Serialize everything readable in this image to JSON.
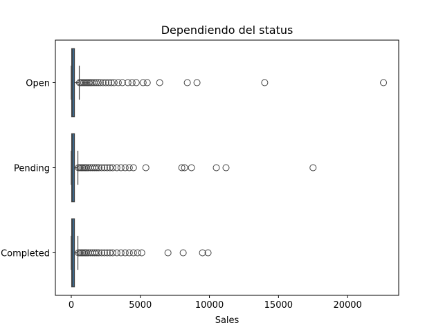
{
  "chart_data": {
    "type": "boxplot",
    "orientation": "horizontal",
    "title": "Dependiendo del status",
    "xlabel": "Sales",
    "ylabel": "",
    "xlim": [
      -1150,
      23700
    ],
    "x_ticks": [
      0,
      5000,
      10000,
      15000,
      20000
    ],
    "grid": false,
    "legend": "none",
    "box_color": "#3a6f9a",
    "categories": [
      "Open",
      "Pending",
      "Completed"
    ],
    "series": [
      {
        "category": "Open",
        "whisker_low": 0,
        "q1": 30,
        "median": 90,
        "q3": 230,
        "whisker_high": 580,
        "outliers": [
          600,
          700,
          800,
          900,
          1000,
          1100,
          1200,
          1300,
          1400,
          1500,
          1650,
          1800,
          1950,
          2100,
          2300,
          2500,
          2700,
          2900,
          3100,
          3400,
          3700,
          4100,
          4400,
          4700,
          5200,
          5500,
          6400,
          8400,
          9100,
          14000,
          22600
        ]
      },
      {
        "category": "Pending",
        "whisker_low": 0,
        "q1": 30,
        "median": 90,
        "q3": 230,
        "whisker_high": 480,
        "outliers": [
          520,
          620,
          720,
          820,
          920,
          1020,
          1120,
          1250,
          1400,
          1550,
          1700,
          1850,
          2000,
          2200,
          2400,
          2600,
          2800,
          3000,
          3300,
          3600,
          3900,
          4200,
          4500,
          5400,
          8000,
          8200,
          8700,
          10500,
          11200,
          17500
        ]
      },
      {
        "category": "Completed",
        "whisker_low": 0,
        "q1": 30,
        "median": 90,
        "q3": 230,
        "whisker_high": 480,
        "outliers": [
          520,
          620,
          720,
          820,
          920,
          1020,
          1120,
          1250,
          1400,
          1550,
          1700,
          1850,
          2000,
          2200,
          2400,
          2600,
          2800,
          3000,
          3300,
          3600,
          3900,
          4200,
          4500,
          4800,
          5100,
          7000,
          8100,
          9500,
          9900
        ]
      }
    ]
  }
}
